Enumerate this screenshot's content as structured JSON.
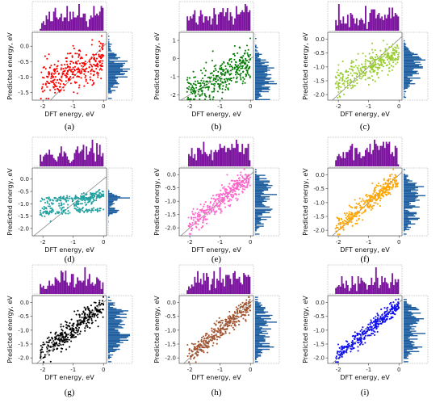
{
  "figure": {
    "panel_label_template": "({id})"
  },
  "chart_data": [
    {
      "id": "a",
      "type": "scatter",
      "color": "#ff0000",
      "xlabel": "DFT energy, eV",
      "ylabel": "Predicted energy, eV",
      "xlim": [
        -2.35,
        0.1
      ],
      "ylim": [
        -1.75,
        0.45
      ],
      "xticks": [
        -2,
        -1,
        0
      ],
      "yticks": [
        0.0,
        -0.5,
        -1.0,
        -1.5
      ],
      "ytick_labels": [
        "0.0",
        "-0.5",
        "-1.0",
        "-1.5"
      ],
      "identity_line": true,
      "marginal_histograms": true,
      "marginal_colors": {
        "top": "#7b139f",
        "right": "#1f5fa0"
      },
      "series": [
        {
          "slope": 0.35,
          "intercept": -0.45,
          "noise": 0.3
        }
      ]
    },
    {
      "id": "b",
      "type": "scatter",
      "color": "#007a00",
      "xlabel": "DFT energy, eV",
      "ylabel": "Predicted energy, eV",
      "xlim": [
        -2.35,
        0.1
      ],
      "ylim": [
        -2.3,
        1.45
      ],
      "xticks": [
        -2,
        -1,
        0
      ],
      "yticks": [
        1,
        0,
        -1,
        -2
      ],
      "ytick_labels": [
        "1",
        "0",
        "-1",
        "-2"
      ],
      "identity_line": true,
      "marginal_histograms": true,
      "marginal_colors": {
        "top": "#7b139f",
        "right": "#1f5fa0"
      },
      "series": [
        {
          "slope": 0.85,
          "intercept": -0.2,
          "noise": 0.45
        }
      ]
    },
    {
      "id": "c",
      "type": "scatter",
      "color": "#9acd32",
      "xlabel": "DFT energy, eV",
      "ylabel": "Predicted energy, eV",
      "xlim": [
        -2.35,
        0.1
      ],
      "ylim": [
        -2.2,
        0.25
      ],
      "xticks": [
        -2,
        -1,
        0
      ],
      "yticks": [
        0.0,
        -0.5,
        -1.0,
        -1.5,
        -2.0
      ],
      "ytick_labels": [
        "0.0",
        "-0.5",
        "-1.0",
        "-1.5",
        "-2.0"
      ],
      "identity_line": true,
      "marginal_histograms": true,
      "marginal_colors": {
        "top": "#7b139f",
        "right": "#1f5fa0"
      },
      "series": [
        {
          "slope": 0.55,
          "intercept": -0.45,
          "noise": 0.25
        }
      ]
    },
    {
      "id": "d",
      "type": "scatter",
      "color": "#20a0a0",
      "xlabel": "DFT energy, eV",
      "ylabel": "Predicted energy, eV",
      "xlim": [
        -2.35,
        0.1
      ],
      "ylim": [
        -2.3,
        0.45
      ],
      "xticks": [
        -2,
        -1,
        0
      ],
      "yticks": [
        0.0,
        -0.5,
        -1.0,
        -1.5,
        -2.0
      ],
      "ytick_labels": [
        "0.0",
        "-0.5",
        "-1.0",
        "-1.5",
        "-2.0"
      ],
      "identity_line": true,
      "marginal_histograms": true,
      "marginal_colors": {
        "top": "#7b139f",
        "right": "#1f5fa0"
      },
      "series": [
        {
          "slope": 0.3,
          "intercept": -0.65,
          "noise": 0.15,
          "bands": [
            -0.75,
            -1.3
          ]
        }
      ]
    },
    {
      "id": "e",
      "type": "scatter",
      "color": "#ff66cc",
      "xlabel": "DFT energy, eV",
      "ylabel": "Predicted energy, eV",
      "xlim": [
        -2.35,
        0.1
      ],
      "ylim": [
        -2.3,
        0.25
      ],
      "xticks": [
        -2,
        -1,
        0
      ],
      "yticks": [
        0.0,
        -0.5,
        -1.0,
        -1.5,
        -2.0
      ],
      "ytick_labels": [
        "0.0",
        "-0.5",
        "-1.0",
        "-1.5",
        "-2.0"
      ],
      "identity_line": true,
      "marginal_histograms": true,
      "marginal_colors": {
        "top": "#7b139f",
        "right": "#1f5fa0"
      },
      "series": [
        {
          "slope": 0.9,
          "intercept": -0.1,
          "noise": 0.2
        }
      ]
    },
    {
      "id": "f",
      "type": "scatter",
      "color": "#ffa500",
      "xlabel": "DFT energy, eV",
      "ylabel": "Predicted energy, eV",
      "xlim": [
        -2.35,
        0.1
      ],
      "ylim": [
        -2.2,
        0.25
      ],
      "xticks": [
        -2,
        -1,
        0
      ],
      "yticks": [
        0.0,
        -0.5,
        -1.0,
        -1.5,
        -2.0
      ],
      "ytick_labels": [
        "0.0",
        "-0.5",
        "-1.0",
        "-1.5",
        "-2.0"
      ],
      "identity_line": true,
      "marginal_histograms": true,
      "marginal_colors": {
        "top": "#7b139f",
        "right": "#1f5fa0"
      },
      "series": [
        {
          "slope": 0.9,
          "intercept": -0.1,
          "noise": 0.18
        }
      ]
    },
    {
      "id": "g",
      "type": "scatter",
      "color": "#000000",
      "xlabel": "DFT energy, eV",
      "ylabel": "Predicted energy, eV",
      "xlim": [
        -2.35,
        0.1
      ],
      "ylim": [
        -2.2,
        0.25
      ],
      "xticks": [
        -2,
        -1,
        0
      ],
      "yticks": [
        0.0,
        -0.5,
        -1.0,
        -1.5,
        -2.0
      ],
      "ytick_labels": [
        "0.0",
        "-0.5",
        "-1.0",
        "-1.5",
        "-2.0"
      ],
      "identity_line": true,
      "marginal_histograms": true,
      "marginal_colors": {
        "top": "#7b139f",
        "right": "#1f5fa0"
      },
      "series": [
        {
          "slope": 0.85,
          "intercept": -0.1,
          "noise": 0.22
        }
      ]
    },
    {
      "id": "h",
      "type": "scatter",
      "color": "#a0522d",
      "xlabel": "DFT energy, eV",
      "ylabel": "Predicted energy, eV",
      "xlim": [
        -2.35,
        0.1
      ],
      "ylim": [
        -2.2,
        0.25
      ],
      "xticks": [
        -2,
        -1,
        0
      ],
      "yticks": [
        0.0,
        -0.5,
        -1.0,
        -1.5,
        -2.0
      ],
      "ytick_labels": [
        "0.0",
        "-0.5",
        "-1.0",
        "-1.5",
        "-2.0"
      ],
      "identity_line": true,
      "marginal_histograms": true,
      "marginal_colors": {
        "top": "#7b139f",
        "right": "#1f5fa0"
      },
      "series": [
        {
          "slope": 0.9,
          "intercept": -0.1,
          "noise": 0.17
        }
      ]
    },
    {
      "id": "i",
      "type": "scatter",
      "color": "#1010ee",
      "xlabel": "DFT energy, eV",
      "ylabel": "Predicted energy, eV",
      "xlim": [
        -2.35,
        0.1
      ],
      "ylim": [
        -2.2,
        0.25
      ],
      "xticks": [
        -2,
        -1,
        0
      ],
      "yticks": [
        0.0,
        -0.5,
        -1.0,
        -1.5,
        -2.0
      ],
      "ytick_labels": [
        "0.0",
        "-0.5",
        "-1.0",
        "-1.5",
        "-2.0"
      ],
      "identity_line": true,
      "marginal_histograms": true,
      "marginal_colors": {
        "top": "#7b139f",
        "right": "#1f5fa0"
      },
      "series": [
        {
          "slope": 0.9,
          "intercept": -0.1,
          "noise": 0.14
        }
      ]
    }
  ]
}
